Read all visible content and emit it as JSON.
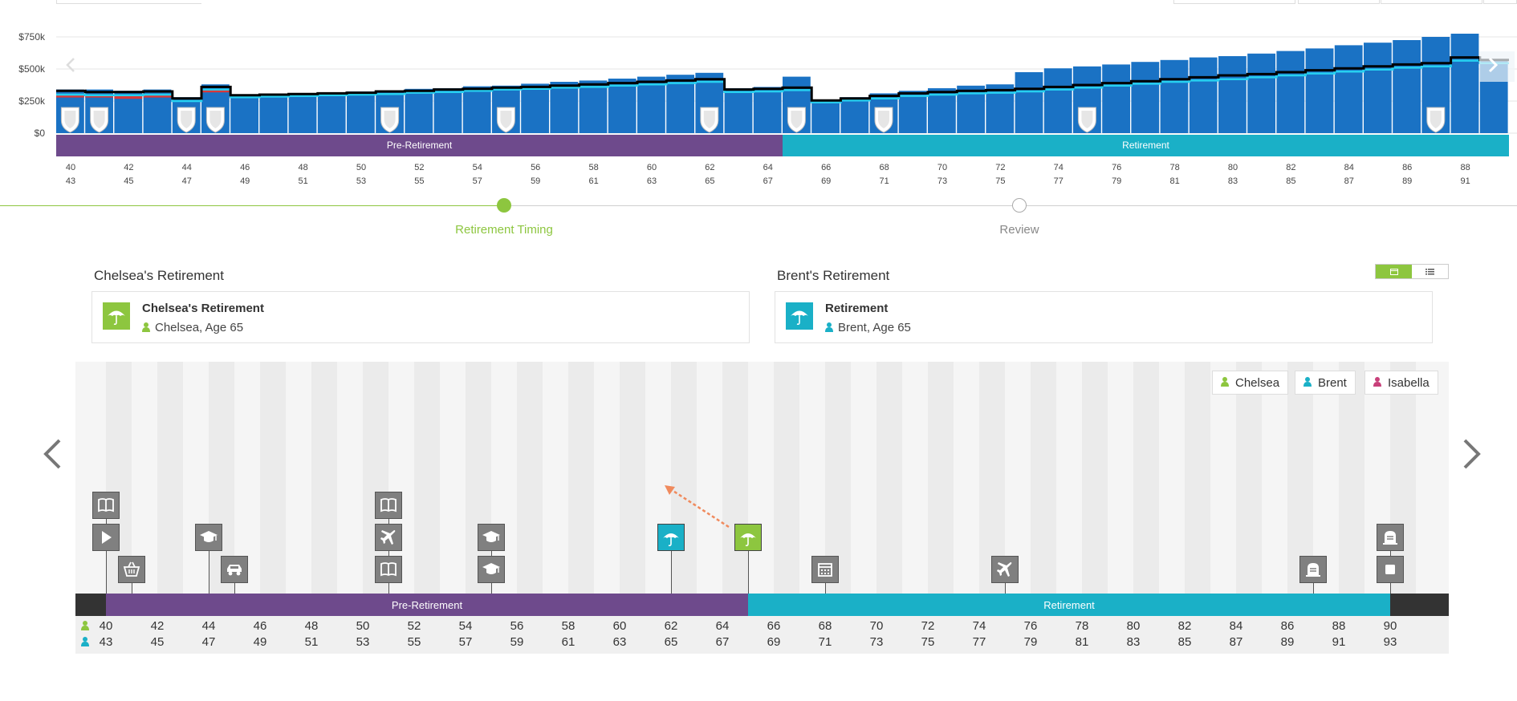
{
  "chart_data": {
    "type": "bar",
    "title": "",
    "ylabel": "",
    "ylim": [
      0,
      750000
    ],
    "y_tick_labels": [
      "$750k",
      "$500k",
      "$250k",
      "$0"
    ],
    "x": [
      40,
      41,
      42,
      43,
      44,
      45,
      46,
      47,
      48,
      49,
      50,
      51,
      52,
      53,
      54,
      55,
      56,
      57,
      58,
      59,
      60,
      61,
      62,
      63,
      64,
      65,
      66,
      67,
      68,
      69,
      70,
      71,
      72,
      73,
      74,
      75,
      76,
      77,
      78,
      79,
      80,
      81,
      82,
      83,
      84,
      85,
      86,
      87,
      88,
      89
    ],
    "series": [
      {
        "name": "Assets",
        "color": "#1a72c4",
        "values": [
          340000,
          340000,
          330000,
          340000,
          280000,
          380000,
          300000,
          305000,
          310000,
          315000,
          325000,
          330000,
          345000,
          350000,
          365000,
          370000,
          385000,
          400000,
          410000,
          425000,
          440000,
          455000,
          470000,
          350000,
          360000,
          440000,
          260000,
          280000,
          310000,
          330000,
          350000,
          370000,
          380000,
          475000,
          505000,
          520000,
          535000,
          555000,
          570000,
          590000,
          600000,
          620000,
          640000,
          660000,
          685000,
          705000,
          725000,
          750000,
          775000,
          560000
        ]
      },
      {
        "name": "Liabilities",
        "color": "#d9383a",
        "values": [
          60000,
          60000,
          55000,
          50000,
          0,
          70000,
          0,
          0,
          0,
          0,
          0,
          0,
          0,
          0,
          0,
          0,
          0,
          0,
          0,
          0,
          0,
          0,
          0,
          0,
          0,
          0,
          0,
          0,
          0,
          0,
          0,
          0,
          0,
          0,
          0,
          0,
          0,
          0,
          0,
          0,
          0,
          0,
          0,
          0,
          0,
          0,
          0,
          0,
          0,
          0
        ]
      },
      {
        "name": "Net Worth",
        "color": "#000000",
        "values": [
          330000,
          320000,
          320000,
          325000,
          270000,
          360000,
          295000,
          300000,
          305000,
          310000,
          315000,
          325000,
          330000,
          340000,
          345000,
          355000,
          360000,
          370000,
          380000,
          390000,
          400000,
          410000,
          420000,
          340000,
          345000,
          355000,
          255000,
          270000,
          290000,
          310000,
          320000,
          330000,
          335000,
          345000,
          360000,
          375000,
          390000,
          405000,
          420000,
          435000,
          450000,
          460000,
          475000,
          490000,
          505000,
          520000,
          535000,
          545000,
          590000,
          570000
        ]
      },
      {
        "name": "Savings",
        "color": "#26d0f0",
        "values": [
          300000,
          295000,
          295000,
          300000,
          250000,
          340000,
          280000,
          285000,
          290000,
          295000,
          300000,
          305000,
          315000,
          320000,
          330000,
          340000,
          345000,
          355000,
          360000,
          370000,
          380000,
          390000,
          400000,
          320000,
          325000,
          335000,
          240000,
          255000,
          270000,
          290000,
          300000,
          310000,
          315000,
          325000,
          340000,
          355000,
          370000,
          385000,
          400000,
          410000,
          420000,
          435000,
          450000,
          465000,
          480000,
          495000,
          510000,
          520000,
          565000,
          545000
        ]
      }
    ],
    "shield_ages": [
      40,
      41,
      44,
      45,
      51,
      55,
      62,
      65,
      68,
      75,
      87
    ],
    "phases": [
      {
        "label": "Pre-Retirement",
        "color": "#6e4a8c",
        "from": 40,
        "to": 65
      },
      {
        "label": "Retirement",
        "color": "#1ab0c7",
        "from": 65,
        "to": 90
      }
    ],
    "age_ticks_primary": [
      "40",
      "42",
      "44",
      "46",
      "48",
      "50",
      "52",
      "54",
      "56",
      "58",
      "60",
      "62",
      "64",
      "66",
      "68",
      "70",
      "72",
      "74",
      "76",
      "78",
      "80",
      "82",
      "84",
      "86",
      "88"
    ],
    "age_ticks_secondary": [
      "43",
      "45",
      "47",
      "49",
      "51",
      "53",
      "55",
      "57",
      "59",
      "61",
      "63",
      "65",
      "67",
      "69",
      "71",
      "73",
      "75",
      "77",
      "79",
      "81",
      "83",
      "85",
      "87",
      "89",
      "91"
    ]
  },
  "stepper": {
    "steps": [
      {
        "label": "Retirement Timing",
        "active": true
      },
      {
        "label": "Review",
        "active": false
      }
    ],
    "active_color": "#8dc63f",
    "inactive_color": "#999999"
  },
  "cards": {
    "left": {
      "title": "Chelsea's Retirement",
      "name": "Chelsea's Retirement",
      "person": "Chelsea, Age 65",
      "icon": "umbrella-icon",
      "color": "#8dc63f"
    },
    "right": {
      "title": "Brent's Retirement",
      "name": "Retirement",
      "person": "Brent, Age 65",
      "icon": "umbrella-icon",
      "color": "#1ab0c7"
    }
  },
  "view_toggle": {
    "active": "calendar",
    "options": [
      "calendar-icon",
      "list-icon"
    ],
    "active_color": "#8dc63f"
  },
  "timeline": {
    "legend": [
      {
        "label": "Chelsea",
        "color": "#8dc63f"
      },
      {
        "label": "Brent",
        "color": "#1ab0c7"
      },
      {
        "label": "Isabella",
        "color": "#c8407a"
      }
    ],
    "phases": [
      {
        "label": "Pre-Retirement",
        "color": "#6e4a8c"
      },
      {
        "label": "Retirement",
        "color": "#1ab0c7"
      }
    ],
    "chelsea_ages": [
      "40",
      "42",
      "44",
      "46",
      "48",
      "50",
      "52",
      "54",
      "56",
      "58",
      "60",
      "62",
      "64",
      "66",
      "68",
      "70",
      "72",
      "74",
      "76",
      "78",
      "80",
      "82",
      "84",
      "86",
      "88",
      "90"
    ],
    "brent_ages": [
      "43",
      "45",
      "47",
      "49",
      "51",
      "53",
      "55",
      "57",
      "59",
      "61",
      "63",
      "65",
      "67",
      "69",
      "71",
      "73",
      "75",
      "77",
      "79",
      "81",
      "83",
      "85",
      "87",
      "89",
      "91",
      "93"
    ],
    "events": [
      {
        "age": 40,
        "stack": 3,
        "icon": "book-icon",
        "color": "#808080"
      },
      {
        "age": 40,
        "stack": 2,
        "icon": "play-icon",
        "color": "#808080"
      },
      {
        "age": 41,
        "stack": 1,
        "icon": "basket-icon",
        "color": "#808080"
      },
      {
        "age": 44,
        "stack": 2,
        "icon": "graduation-cap-icon",
        "color": "#808080"
      },
      {
        "age": 45,
        "stack": 1,
        "icon": "car-icon",
        "color": "#808080"
      },
      {
        "age": 51,
        "stack": 3,
        "icon": "book-icon",
        "color": "#808080"
      },
      {
        "age": 51,
        "stack": 2,
        "icon": "airplane-icon",
        "color": "#808080"
      },
      {
        "age": 51,
        "stack": 1,
        "icon": "book-icon",
        "color": "#808080"
      },
      {
        "age": 55,
        "stack": 2,
        "icon": "graduation-cap-icon",
        "color": "#808080"
      },
      {
        "age": 55,
        "stack": 1,
        "icon": "graduation-cap-icon",
        "color": "#808080"
      },
      {
        "age": 62,
        "stack": 2,
        "icon": "umbrella-icon",
        "color": "#1ab0c7"
      },
      {
        "age": 65,
        "stack": 2,
        "icon": "umbrella-icon",
        "color": "#8dc63f"
      },
      {
        "age": 68,
        "stack": 1,
        "icon": "calendar-icon",
        "color": "#808080"
      },
      {
        "age": 75,
        "stack": 1,
        "icon": "airplane-icon",
        "color": "#808080"
      },
      {
        "age": 87,
        "stack": 1,
        "icon": "tombstone-icon",
        "color": "#808080"
      },
      {
        "age": 90,
        "stack": 2,
        "icon": "tombstone-icon",
        "color": "#808080"
      },
      {
        "age": 90,
        "stack": 1,
        "icon": "stop-icon",
        "color": "#808080"
      }
    ]
  }
}
